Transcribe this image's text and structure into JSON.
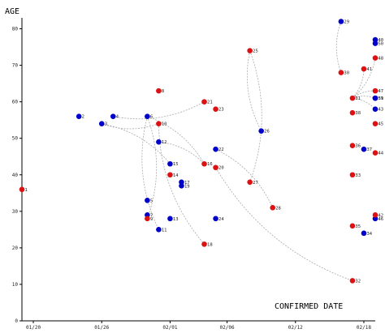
{
  "chart_data": {
    "type": "scatter",
    "title": "",
    "ylabel": "AGE",
    "xlabel": "CONFIRMED DATE",
    "x_axis": {
      "type": "date",
      "range": [
        "2020-01-19",
        "2020-02-19"
      ],
      "ticks": [
        {
          "value": "2020-01-20",
          "label": "01/20"
        },
        {
          "value": "2020-01-26",
          "label": "01/26"
        },
        {
          "value": "2020-02-01",
          "label": "02/01"
        },
        {
          "value": "2020-02-06",
          "label": "02/06"
        },
        {
          "value": "2020-02-12",
          "label": "02/12"
        },
        {
          "value": "2020-02-18",
          "label": "02/18"
        }
      ]
    },
    "y_axis": {
      "range": [
        0,
        83
      ],
      "ticks": [
        0,
        10,
        20,
        30,
        40,
        50,
        60,
        70,
        80
      ]
    },
    "grid": false,
    "legend": "none",
    "colors": {
      "male": "#0000cc",
      "female": "#dd1111",
      "link": "#aaaaaa",
      "axis": "#000000"
    },
    "series": [
      {
        "marker": "male",
        "points": [
          {
            "id": "2",
            "x": "2020-01-24",
            "y": 56
          },
          {
            "id": "3",
            "x": "2020-01-26",
            "y": 54
          },
          {
            "id": "4",
            "x": "2020-01-27",
            "y": 56
          },
          {
            "id": "5",
            "x": "2020-01-30",
            "y": 33
          },
          {
            "id": "6",
            "x": "2020-01-30",
            "y": 56
          },
          {
            "id": "7",
            "x": "2020-01-30",
            "y": 29
          },
          {
            "id": "11",
            "x": "2020-01-31",
            "y": 25
          },
          {
            "id": "12",
            "x": "2020-01-31",
            "y": 49
          },
          {
            "id": "13",
            "x": "2020-02-01",
            "y": 28
          },
          {
            "id": "15",
            "x": "2020-02-01",
            "y": 43
          },
          {
            "id": "17",
            "x": "2020-02-02",
            "y": 38
          },
          {
            "id": "19",
            "x": "2020-02-02",
            "y": 37
          },
          {
            "id": "22",
            "x": "2020-02-05",
            "y": 47
          },
          {
            "id": "24",
            "x": "2020-02-05",
            "y": 28
          },
          {
            "id": "26",
            "x": "2020-02-09",
            "y": 52
          },
          {
            "id": "29",
            "x": "2020-02-16",
            "y": 82
          },
          {
            "id": "37",
            "x": "2020-02-18",
            "y": 47
          },
          {
            "id": "34",
            "x": "2020-02-18",
            "y": 24
          },
          {
            "id": "39",
            "x": "2020-02-19",
            "y": 61
          },
          {
            "id": "40",
            "x": "2020-02-19",
            "y": 77
          },
          {
            "id": "43",
            "x": "2020-02-19",
            "y": 58
          },
          {
            "id": "46",
            "x": "2020-02-19",
            "y": 28
          },
          {
            "id": "50",
            "x": "2020-02-19",
            "y": 76
          },
          {
            "id": "51",
            "x": "2020-02-19",
            "y": 61
          }
        ]
      },
      {
        "marker": "female",
        "points": [
          {
            "id": "1",
            "x": "2020-01-19",
            "y": 36
          },
          {
            "id": "8",
            "x": "2020-01-31",
            "y": 63
          },
          {
            "id": "9",
            "x": "2020-01-30",
            "y": 28
          },
          {
            "id": "10",
            "x": "2020-01-31",
            "y": 54
          },
          {
            "id": "14",
            "x": "2020-02-01",
            "y": 40
          },
          {
            "id": "16",
            "x": "2020-02-04",
            "y": 43
          },
          {
            "id": "18",
            "x": "2020-02-04",
            "y": 21
          },
          {
            "id": "20",
            "x": "2020-02-05",
            "y": 42
          },
          {
            "id": "21",
            "x": "2020-02-04",
            "y": 60
          },
          {
            "id": "23",
            "x": "2020-02-05",
            "y": 58
          },
          {
            "id": "25",
            "x": "2020-02-08",
            "y": 74
          },
          {
            "id": "27",
            "x": "2020-02-08",
            "y": 38
          },
          {
            "id": "28",
            "x": "2020-02-10",
            "y": 31
          },
          {
            "id": "30",
            "x": "2020-02-16",
            "y": 68
          },
          {
            "id": "31",
            "x": "2020-02-17",
            "y": 61
          },
          {
            "id": "32",
            "x": "2020-02-17",
            "y": 11
          },
          {
            "id": "33",
            "x": "2020-02-17",
            "y": 40
          },
          {
            "id": "35",
            "x": "2020-02-17",
            "y": 26
          },
          {
            "id": "36",
            "x": "2020-02-17",
            "y": 48
          },
          {
            "id": "38",
            "x": "2020-02-17",
            "y": 57
          },
          {
            "id": "41",
            "x": "2020-02-18",
            "y": 69
          },
          {
            "id": "42",
            "x": "2020-02-19",
            "y": 29
          },
          {
            "id": "44",
            "x": "2020-02-19",
            "y": 46
          },
          {
            "id": "45",
            "x": "2020-02-19",
            "y": 54
          },
          {
            "id": "47",
            "x": "2020-02-19",
            "y": 63
          },
          {
            "id": "48",
            "x": "2020-02-19",
            "y": 72
          }
        ]
      }
    ],
    "links": [
      [
        "3",
        "10"
      ],
      [
        "3",
        "15"
      ],
      [
        "4",
        "21"
      ],
      [
        "6",
        "9"
      ],
      [
        "6",
        "11"
      ],
      [
        "6",
        "16"
      ],
      [
        "10",
        "18"
      ],
      [
        "12",
        "16"
      ],
      [
        "20",
        "32"
      ],
      [
        "22",
        "28"
      ],
      [
        "25",
        "26"
      ],
      [
        "25",
        "27"
      ],
      [
        "29",
        "30"
      ],
      [
        "31",
        "43"
      ],
      [
        "31",
        "41"
      ],
      [
        "31",
        "47"
      ],
      [
        "31",
        "48"
      ],
      [
        "31",
        "39"
      ]
    ]
  }
}
